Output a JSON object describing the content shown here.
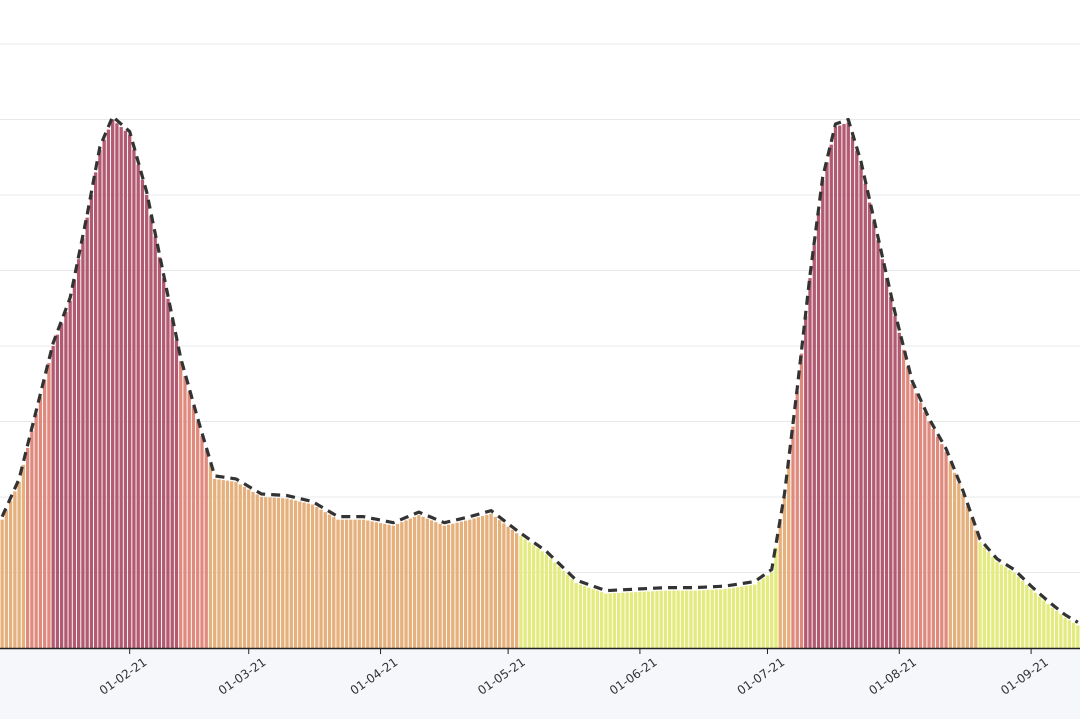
{
  "chart_data": {
    "type": "bar",
    "title": "",
    "xlabel": "",
    "ylabel": "",
    "grid": true,
    "ylim": [
      0,
      4000
    ],
    "x_ticks": [
      "01-02-21",
      "01-03-21",
      "01-04-21",
      "01-05-21",
      "01-06-21",
      "01-07-21",
      "01-08-21",
      "01-09-21"
    ],
    "x_tick_dates": [
      "2021-02-01",
      "2021-03-01",
      "2021-04-01",
      "2021-05-01",
      "2021-06-01",
      "2021-07-01",
      "2021-08-01",
      "2021-09-01"
    ],
    "x_range": [
      "2021-01-02",
      "2021-09-12"
    ],
    "trend_line": "dashed",
    "color_scale": [
      {
        "max": 750,
        "color": "#e3ea7e"
      },
      {
        "max": 1300,
        "color": "#e5b07c"
      },
      {
        "max": 2000,
        "color": "#e08a7e"
      },
      {
        "max": 99999,
        "color": "#b25a72"
      }
    ],
    "series": [
      {
        "start": "2021-01-02",
        "control_points": [
          [
            "2021-01-02",
            850
          ],
          [
            "2021-01-06",
            1100
          ],
          [
            "2021-01-10",
            1550
          ],
          [
            "2021-01-14",
            2000
          ],
          [
            "2021-01-18",
            2300
          ],
          [
            "2021-01-22",
            2850
          ],
          [
            "2021-01-25",
            3300
          ],
          [
            "2021-01-28",
            3500
          ],
          [
            "2021-02-01",
            3400
          ],
          [
            "2021-02-05",
            3000
          ],
          [
            "2021-02-09",
            2450
          ],
          [
            "2021-02-13",
            1900
          ],
          [
            "2021-02-17",
            1500
          ],
          [
            "2021-02-21",
            1120
          ],
          [
            "2021-02-26",
            1100
          ],
          [
            "2021-03-04",
            1000
          ],
          [
            "2021-03-10",
            990
          ],
          [
            "2021-03-16",
            950
          ],
          [
            "2021-03-22",
            850
          ],
          [
            "2021-03-28",
            850
          ],
          [
            "2021-04-04",
            810
          ],
          [
            "2021-04-10",
            880
          ],
          [
            "2021-04-16",
            810
          ],
          [
            "2021-04-22",
            850
          ],
          [
            "2021-04-27",
            890
          ],
          [
            "2021-05-03",
            760
          ],
          [
            "2021-05-10",
            620
          ],
          [
            "2021-05-17",
            430
          ],
          [
            "2021-05-24",
            360
          ],
          [
            "2021-05-31",
            370
          ],
          [
            "2021-06-07",
            380
          ],
          [
            "2021-06-14",
            380
          ],
          [
            "2021-06-21",
            390
          ],
          [
            "2021-06-28",
            420
          ],
          [
            "2021-07-02",
            500
          ],
          [
            "2021-07-05",
            1000
          ],
          [
            "2021-07-08",
            1700
          ],
          [
            "2021-07-11",
            2450
          ],
          [
            "2021-07-14",
            3100
          ],
          [
            "2021-07-17",
            3450
          ],
          [
            "2021-07-20",
            3480
          ],
          [
            "2021-07-23",
            3200
          ],
          [
            "2021-07-27",
            2700
          ],
          [
            "2021-07-31",
            2200
          ],
          [
            "2021-08-04",
            1750
          ],
          [
            "2021-08-08",
            1500
          ],
          [
            "2021-08-12",
            1300
          ],
          [
            "2021-08-16",
            1020
          ],
          [
            "2021-08-20",
            700
          ],
          [
            "2021-08-24",
            570
          ],
          [
            "2021-08-28",
            500
          ],
          [
            "2021-09-01",
            390
          ],
          [
            "2021-09-05",
            290
          ],
          [
            "2021-09-09",
            200
          ],
          [
            "2021-09-12",
            150
          ]
        ]
      }
    ]
  }
}
